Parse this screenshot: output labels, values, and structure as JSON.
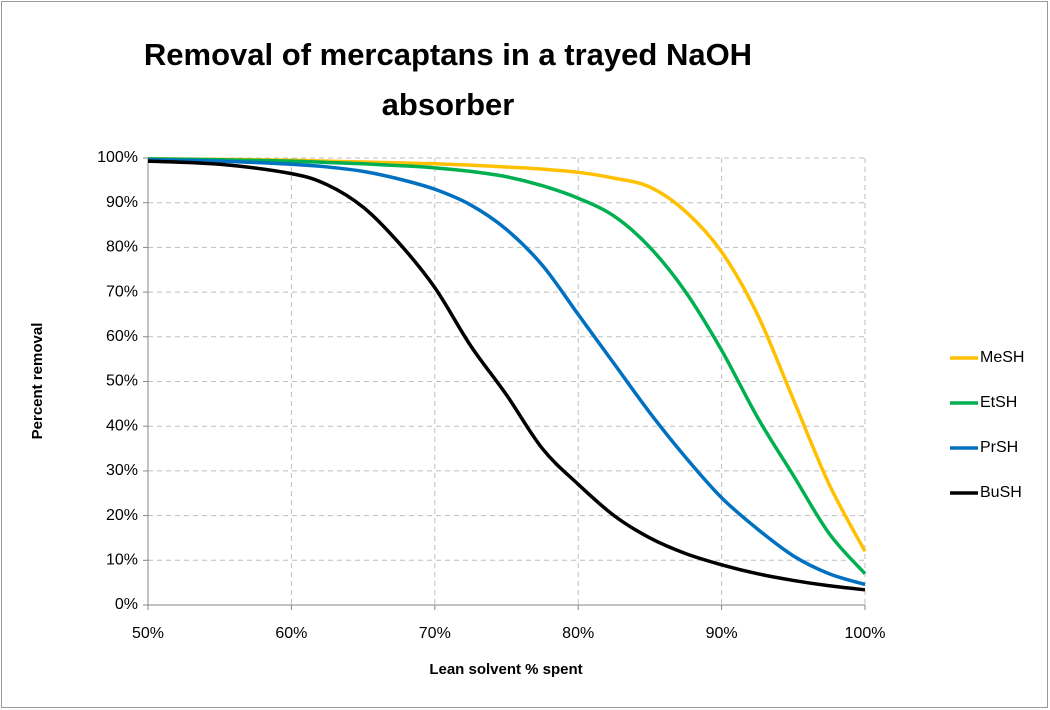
{
  "chart_data": {
    "type": "line",
    "title": [
      "Removal of mercaptans in a trayed NaOH",
      "absorber"
    ],
    "x_label": "Lean solvent % spent",
    "y_label": "Percent removal",
    "x": [
      50,
      55,
      60,
      62.5,
      65,
      67.5,
      70,
      72.5,
      75,
      77.5,
      80,
      82.5,
      85,
      87.5,
      90,
      92.5,
      95,
      97.5,
      100
    ],
    "series": [
      {
        "name": "MeSH",
        "color": "#ffc000",
        "values": [
          99.8,
          99.7,
          99.5,
          99.3,
          99.1,
          98.9,
          98.7,
          98.4,
          98,
          97.5,
          96.8,
          95.5,
          93.5,
          88,
          79,
          65,
          46,
          27,
          12
        ]
      },
      {
        "name": "EtSH",
        "color": "#00b050",
        "values": [
          99.8,
          99.6,
          99.3,
          99,
          98.7,
          98.3,
          97.8,
          97,
          95.8,
          93.8,
          91,
          87,
          80,
          70,
          57,
          42,
          29,
          16,
          7
        ]
      },
      {
        "name": "PrSH",
        "color": "#0070c0",
        "values": [
          99.6,
          99.3,
          98.6,
          98,
          97,
          95.3,
          93,
          89.5,
          84,
          76,
          65,
          54,
          43,
          33,
          24,
          17,
          11,
          7,
          4.6
        ]
      },
      {
        "name": "BuSH",
        "color": "#000000",
        "values": [
          99.3,
          98.6,
          96.5,
          94,
          89,
          81,
          71,
          58,
          47,
          35,
          27,
          20,
          15,
          11.5,
          9,
          7,
          5.5,
          4.3,
          3.4
        ]
      }
    ],
    "xlim": [
      50,
      100
    ],
    "xticks": [
      {
        "value": 50,
        "label": "50%"
      },
      {
        "value": 60,
        "label": "60%"
      },
      {
        "value": 70,
        "label": "70%"
      },
      {
        "value": 80,
        "label": "80%"
      },
      {
        "value": 90,
        "label": "90%"
      },
      {
        "value": 100,
        "label": "100%"
      }
    ],
    "ylim": [
      0,
      100
    ],
    "yticks": [
      {
        "value": 0,
        "label": "0%"
      },
      {
        "value": 10,
        "label": "10%"
      },
      {
        "value": 20,
        "label": "20%"
      },
      {
        "value": 30,
        "label": "30%"
      },
      {
        "value": 40,
        "label": "40%"
      },
      {
        "value": 50,
        "label": "50%"
      },
      {
        "value": 60,
        "label": "60%"
      },
      {
        "value": 70,
        "label": "70%"
      },
      {
        "value": 80,
        "label": "80%"
      },
      {
        "value": 90,
        "label": "90%"
      },
      {
        "value": 100,
        "label": "100%"
      }
    ],
    "grid": true,
    "legend": "right"
  }
}
